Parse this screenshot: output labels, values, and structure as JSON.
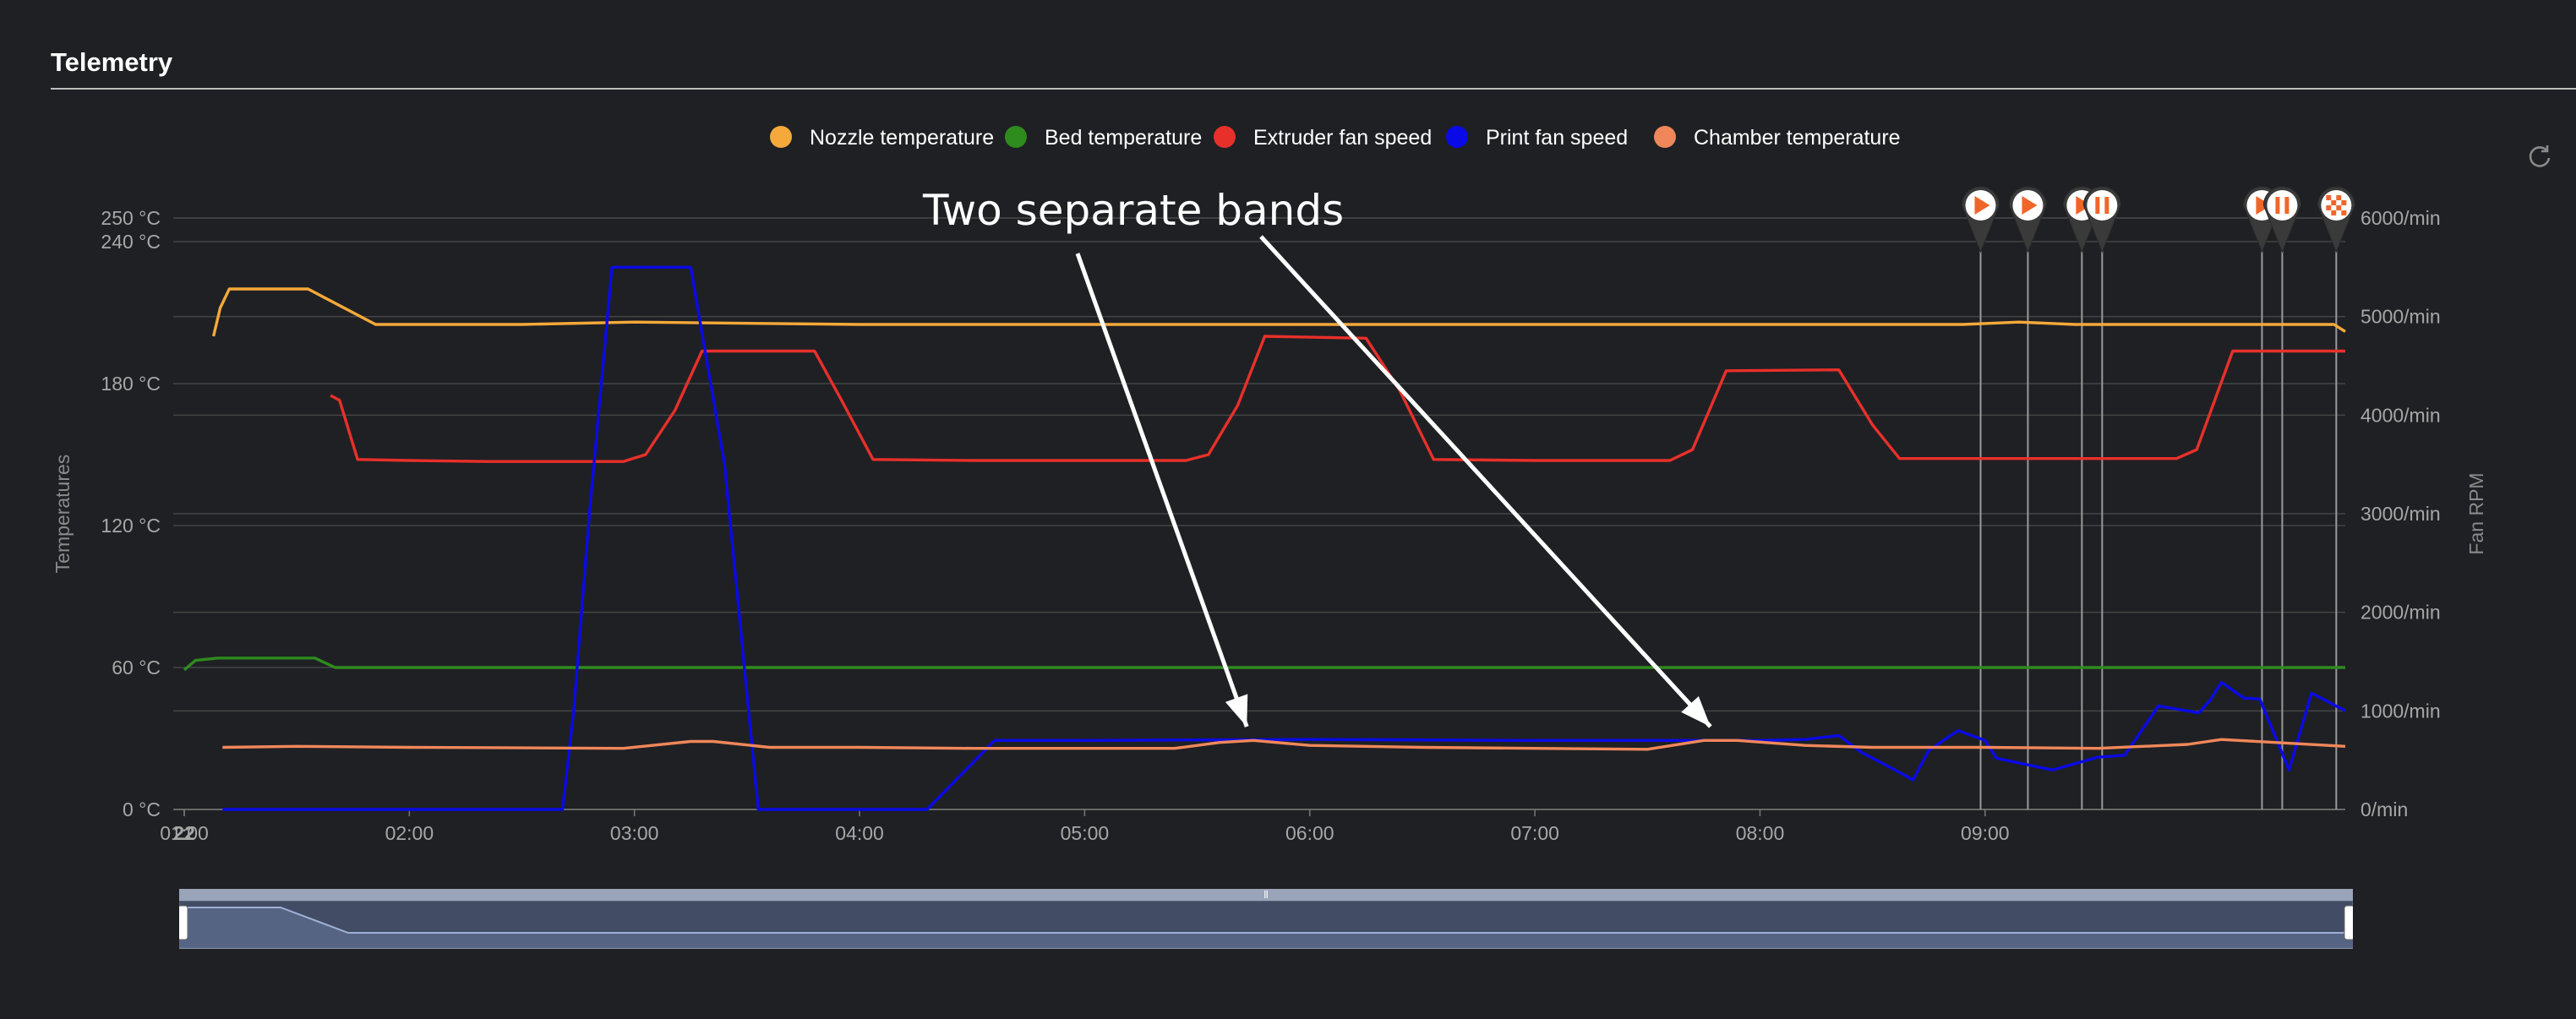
{
  "panel": {
    "title": "Telemetry"
  },
  "chart_data": {
    "type": "line",
    "legend": [
      {
        "name": "Nozzle temperature",
        "color": "#f5a93a"
      },
      {
        "name": "Bed temperature",
        "color": "#2e8b1e"
      },
      {
        "name": "Extruder fan speed",
        "color": "#e8302a"
      },
      {
        "name": "Print fan speed",
        "color": "#0a0ae6"
      },
      {
        "name": "Chamber temperature",
        "color": "#f0875a"
      }
    ],
    "legend_position": "top-center",
    "x_label": "",
    "x_ticks": [
      "22",
      "01:00",
      "02:00",
      "03:00",
      "04:00",
      "05:00",
      "06:00",
      "07:00",
      "08:00",
      "09:00"
    ],
    "x_domain_hours": [
      0,
      9.6
    ],
    "y_left": {
      "label": "Temperatures",
      "ticks": [
        "0 °C",
        "60 °C",
        "120 °C",
        "180 °C",
        "240 °C",
        "250 °C"
      ],
      "range": [
        0,
        250
      ]
    },
    "y_right": {
      "label": "Fan RPM",
      "ticks": [
        "0/min",
        "1000/min",
        "2000/min",
        "3000/min",
        "4000/min",
        "5000/min",
        "6000/min"
      ],
      "range": [
        0,
        6000
      ]
    },
    "grid": true,
    "series": [
      {
        "name": "Nozzle temperature",
        "axis": "left",
        "color": "#f5a93a",
        "points": [
          [
            0.13,
            200
          ],
          [
            0.16,
            212
          ],
          [
            0.2,
            220
          ],
          [
            0.55,
            220
          ],
          [
            0.85,
            205
          ],
          [
            1.5,
            205
          ],
          [
            2.0,
            206
          ],
          [
            3.0,
            205
          ],
          [
            4.0,
            205
          ],
          [
            5.0,
            205
          ],
          [
            6.0,
            205
          ],
          [
            7.0,
            205
          ],
          [
            7.9,
            205
          ],
          [
            8.15,
            206
          ],
          [
            8.4,
            205
          ],
          [
            9.0,
            205
          ],
          [
            9.55,
            205
          ],
          [
            9.6,
            202
          ]
        ]
      },
      {
        "name": "Bed temperature",
        "axis": "left",
        "color": "#2e8b1e",
        "points": [
          [
            0,
            59
          ],
          [
            0.05,
            63
          ],
          [
            0.15,
            64
          ],
          [
            0.58,
            64
          ],
          [
            0.67,
            60
          ],
          [
            3.0,
            60
          ],
          [
            6.0,
            60
          ],
          [
            9.6,
            60
          ]
        ]
      },
      {
        "name": "Extruder fan speed",
        "axis": "right",
        "color": "#e8302a",
        "points": [
          [
            0.65,
            4200
          ],
          [
            0.69,
            4150
          ],
          [
            0.77,
            3550
          ],
          [
            1.0,
            3540
          ],
          [
            1.35,
            3530
          ],
          [
            1.95,
            3530
          ],
          [
            2.05,
            3600
          ],
          [
            2.18,
            4050
          ],
          [
            2.3,
            4650
          ],
          [
            2.8,
            4650
          ],
          [
            2.92,
            4150
          ],
          [
            3.06,
            3550
          ],
          [
            3.5,
            3540
          ],
          [
            4.0,
            3540
          ],
          [
            4.45,
            3540
          ],
          [
            4.55,
            3600
          ],
          [
            4.68,
            4100
          ],
          [
            4.8,
            4800
          ],
          [
            5.25,
            4780
          ],
          [
            5.4,
            4250
          ],
          [
            5.55,
            3550
          ],
          [
            6.0,
            3540
          ],
          [
            6.6,
            3540
          ],
          [
            6.7,
            3650
          ],
          [
            6.85,
            4450
          ],
          [
            7.35,
            4460
          ],
          [
            7.5,
            3900
          ],
          [
            7.62,
            3560
          ],
          [
            8.0,
            3560
          ],
          [
            8.5,
            3560
          ],
          [
            8.85,
            3560
          ],
          [
            8.94,
            3650
          ],
          [
            9.1,
            4650
          ],
          [
            9.6,
            4650
          ]
        ]
      },
      {
        "name": "Print fan speed",
        "axis": "right",
        "color": "#0a0ae6",
        "points": [
          [
            0.17,
            0
          ],
          [
            1.68,
            0
          ],
          [
            1.73,
            1000
          ],
          [
            1.8,
            3000
          ],
          [
            1.9,
            5500
          ],
          [
            1.97,
            5500
          ],
          [
            2.25,
            5500
          ],
          [
            2.4,
            3500
          ],
          [
            2.55,
            0
          ],
          [
            3.3,
            0
          ],
          [
            3.45,
            350
          ],
          [
            3.6,
            700
          ],
          [
            4.0,
            700
          ],
          [
            5.0,
            710
          ],
          [
            6.0,
            700
          ],
          [
            7.0,
            700
          ],
          [
            7.2,
            710
          ],
          [
            7.35,
            750
          ],
          [
            7.45,
            580
          ],
          [
            7.6,
            400
          ],
          [
            7.68,
            300
          ],
          [
            7.75,
            600
          ],
          [
            7.88,
            800
          ],
          [
            8.0,
            700
          ],
          [
            8.05,
            520
          ],
          [
            8.3,
            400
          ],
          [
            8.5,
            530
          ],
          [
            8.62,
            550
          ],
          [
            8.77,
            1050
          ],
          [
            8.95,
            980
          ],
          [
            9.0,
            1110
          ],
          [
            9.05,
            1290
          ],
          [
            9.15,
            1130
          ],
          [
            9.22,
            1120
          ],
          [
            9.35,
            400
          ],
          [
            9.45,
            1180
          ],
          [
            9.6,
            1000
          ]
        ]
      },
      {
        "name": "Chamber temperature",
        "axis": "right",
        "color": "#f0875a",
        "points": [
          [
            0.17,
            630
          ],
          [
            0.5,
            640
          ],
          [
            1.0,
            630
          ],
          [
            1.5,
            625
          ],
          [
            1.95,
            620
          ],
          [
            2.25,
            690
          ],
          [
            2.35,
            690
          ],
          [
            2.6,
            630
          ],
          [
            3.0,
            630
          ],
          [
            3.5,
            620
          ],
          [
            4.4,
            620
          ],
          [
            4.6,
            680
          ],
          [
            4.75,
            700
          ],
          [
            5.0,
            650
          ],
          [
            5.5,
            630
          ],
          [
            6.0,
            620
          ],
          [
            6.5,
            610
          ],
          [
            6.75,
            700
          ],
          [
            6.9,
            700
          ],
          [
            7.2,
            650
          ],
          [
            7.5,
            630
          ],
          [
            8.0,
            630
          ],
          [
            8.5,
            620
          ],
          [
            8.9,
            660
          ],
          [
            9.05,
            710
          ],
          [
            9.6,
            640
          ]
        ]
      }
    ],
    "markers": [
      {
        "icon": "play-marker-icon",
        "hour": 7.98
      },
      {
        "icon": "play-marker-icon",
        "hour": 8.19
      },
      {
        "icon": "play-marker-icon",
        "hour": 8.43
      },
      {
        "icon": "pause-marker-icon",
        "hour": 8.52
      },
      {
        "icon": "play-marker-icon",
        "hour": 9.23
      },
      {
        "icon": "pause-marker-icon",
        "hour": 9.32
      },
      {
        "icon": "finish-flag-marker-icon",
        "hour": 9.56
      }
    ],
    "annotations": [
      {
        "text": "Two separate bands",
        "arrows_to_hours": [
          4.72,
          6.78
        ]
      }
    ]
  }
}
